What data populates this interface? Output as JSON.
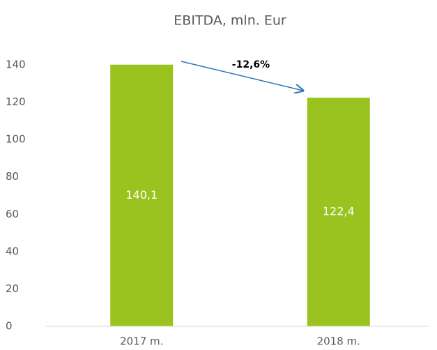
{
  "chart_data": {
    "type": "bar",
    "title": "EBITDA, mln. Eur",
    "categories": [
      "2017 m.",
      "2018 m."
    ],
    "values": [
      140.1,
      122.4
    ],
    "value_labels": [
      "140,1",
      "122,4"
    ],
    "color": "#9bc31f",
    "ylim": [
      0,
      140
    ],
    "yticks": [
      0,
      20,
      40,
      60,
      80,
      100,
      120,
      140
    ],
    "annotation": "-12,6%"
  }
}
